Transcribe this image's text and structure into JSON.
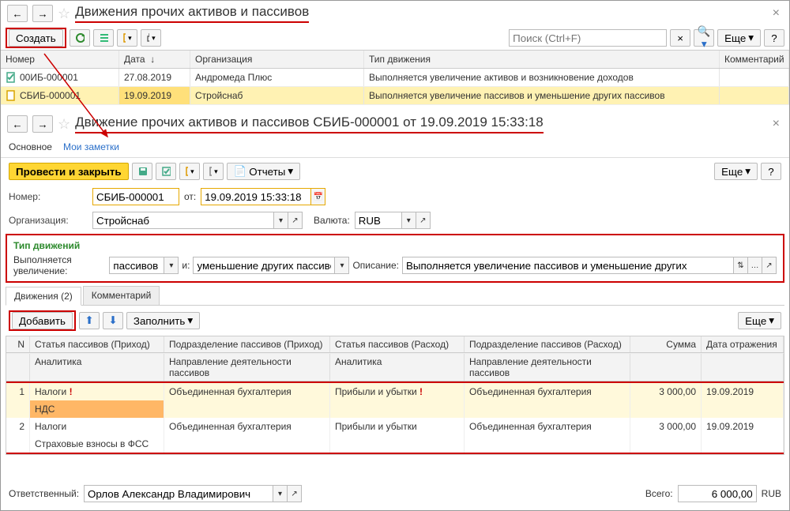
{
  "top": {
    "title": "Движения прочих активов и пассивов",
    "create_btn": "Создать",
    "search_ph": "Поиск (Ctrl+F)",
    "more_btn": "Еще",
    "cols": {
      "num": "Номер",
      "date": "Дата",
      "org": "Организация",
      "type": "Тип движения",
      "comm": "Комментарий"
    },
    "rows": [
      {
        "num": "00ИБ-000001",
        "date": "27.08.2019",
        "org": "Андромеда Плюс",
        "type": "Выполняется увеличение активов и возникновение доходов",
        "sel": false,
        "post": true
      },
      {
        "num": "СБИБ-000001",
        "date": "19.09.2019",
        "org": "Стройснаб",
        "type": "Выполняется увеличение пассивов и уменьшение других пассивов",
        "sel": true,
        "post": false
      }
    ]
  },
  "doc": {
    "title": "Движение прочих активов и пассивов СБИБ-000001 от 19.09.2019 15:33:18",
    "nav": {
      "main": "Основное",
      "notes": "Мои заметки"
    },
    "post_btn": "Провести и закрыть",
    "reports_btn": "Отчеты",
    "more_btn": "Еще",
    "num_lbl": "Номер:",
    "num_val": "СБИБ-000001",
    "from_lbl": "от:",
    "date_val": "19.09.2019 15:33:18",
    "org_lbl": "Организация:",
    "org_val": "Стройснаб",
    "cur_lbl": "Валюта:",
    "cur_val": "RUB",
    "mov": {
      "title": "Тип движений",
      "inc_lbl": "Выполняется увеличение:",
      "inc_val": "пассивов",
      "and_lbl": "и:",
      "dec_val": "уменьшение других пассивов",
      "desc_lbl": "Описание:",
      "desc_val": "Выполняется увеличение пассивов и уменьшение других"
    },
    "tabs": {
      "mov": "Движения (2)",
      "comm": "Комментарий"
    },
    "add_btn": "Добавить",
    "fill_btn": "Заполнить",
    "grid": {
      "hdr1": {
        "n": "N",
        "a": "Статья пассивов (Приход)",
        "b": "Подразделение пассивов (Приход)",
        "c": "Статья пассивов (Расход)",
        "d": "Подразделение пассивов (Расход)",
        "e": "Сумма",
        "f": "Дата отражения"
      },
      "hdr2": {
        "a": "Аналитика",
        "b": "Направление деятельности пассивов",
        "c": "Аналитика",
        "d": "Направление деятельности пассивов"
      },
      "rows": [
        {
          "n": "1",
          "a": "Налоги",
          "a_ex": true,
          "b": "Объединенная бухгалтерия",
          "c": "Прибыли и убытки",
          "c_ex": true,
          "d": "Объединенная бухгалтерия",
          "e": "3 000,00",
          "f": "19.09.2019",
          "sub_a": "НДС",
          "sel": true
        },
        {
          "n": "2",
          "a": "Налоги",
          "a_ex": false,
          "b": "Объединенная бухгалтерия",
          "c": "Прибыли и убытки",
          "c_ex": false,
          "d": "Объединенная бухгалтерия",
          "e": "3 000,00",
          "f": "19.09.2019",
          "sub_a": "Страховые взносы в ФСС",
          "sel": false
        }
      ]
    },
    "resp_lbl": "Ответственный:",
    "resp_val": "Орлов Александр Владимирович",
    "total_lbl": "Всего:",
    "total_val": "6 000,00",
    "total_cur": "RUB"
  },
  "colors": {
    "accent_red": "#cc0000",
    "accent_yellow": "#ffd633",
    "sel_row": "#fff2b3"
  }
}
